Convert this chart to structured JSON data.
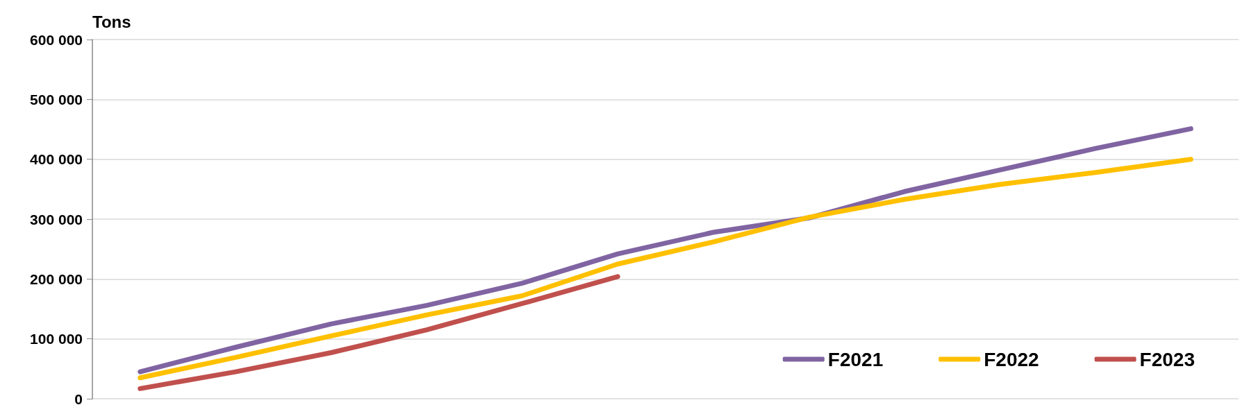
{
  "chart_data": {
    "type": "line",
    "ylabel": "Tons",
    "categories": [
      null,
      null,
      null,
      null,
      null,
      null,
      null,
      null,
      null,
      null,
      null,
      null
    ],
    "series": [
      {
        "name": "F2021",
        "color": "#8064a2",
        "values": [
          45000,
          86000,
          125000,
          156000,
          193000,
          242000,
          278000,
          302000,
          346000,
          382000,
          418000,
          451000
        ]
      },
      {
        "name": "F2022",
        "color": "#ffc000",
        "values": [
          35000,
          69000,
          105000,
          140000,
          172000,
          225000,
          262000,
          303000,
          333000,
          358000,
          378000,
          400000
        ]
      },
      {
        "name": "F2023",
        "color": "#c0504d",
        "values": [
          17000,
          45000,
          77000,
          115000,
          159000,
          204000,
          null,
          null,
          null,
          null,
          null,
          null
        ]
      }
    ],
    "ylim": [
      0,
      600000
    ],
    "yticks": [
      {
        "value": 0,
        "label": "0"
      },
      {
        "value": 100000,
        "label": "100 000"
      },
      {
        "value": 200000,
        "label": "200 000"
      },
      {
        "value": 300000,
        "label": "300 000"
      },
      {
        "value": 400000,
        "label": "400 000"
      },
      {
        "value": 500000,
        "label": "500 000"
      },
      {
        "value": 600000,
        "label": "600 000"
      }
    ],
    "grid": "y",
    "legend": "bottom right",
    "marker": "none",
    "line_style": "solid",
    "tick_labels": "y"
  }
}
